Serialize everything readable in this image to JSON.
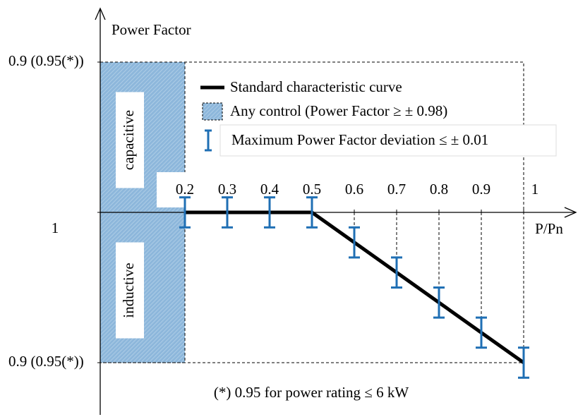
{
  "chart_data": {
    "type": "line",
    "y_label": "Power Factor",
    "x_label": "P/Pn",
    "x": [
      0.2,
      0.3,
      0.4,
      0.5,
      0.6,
      0.7,
      0.8,
      0.9,
      1
    ],
    "xlim": [
      0,
      1.1
    ],
    "xticks": [
      0.2,
      0.3,
      0.4,
      0.5,
      0.6,
      0.7,
      0.8,
      0.9,
      1
    ],
    "ylim": [
      0.9,
      1.1
    ],
    "yticks": [
      {
        "value": 0.9,
        "label": "0.9 (0.95(*))"
      },
      1,
      {
        "value": 1.1,
        "label": "0.9 (0.95(*))"
      }
    ],
    "series": [
      {
        "name": "Standard characteristic curve",
        "color": "#000000",
        "values": [
          1,
          1,
          1,
          1,
          0.98,
          0.96,
          0.94,
          0.92,
          0.9
        ]
      }
    ],
    "region": {
      "name": "Any control (Power Factor ≥ ± 0.98)",
      "color": "#8db7db"
    },
    "error_bars": {
      "name": "Maximum Power Factor deviation  ≤ ± 0.01",
      "color": "#1f6fb4",
      "values": [
        0.01,
        0.01,
        0.01,
        0.01,
        0.01,
        0.01,
        0.01,
        0.01,
        0.01
      ]
    },
    "region_labels": [
      "capacitive",
      "inductive"
    ],
    "footnote": "(*) 0.95 for power rating ≤ 6 kW"
  }
}
